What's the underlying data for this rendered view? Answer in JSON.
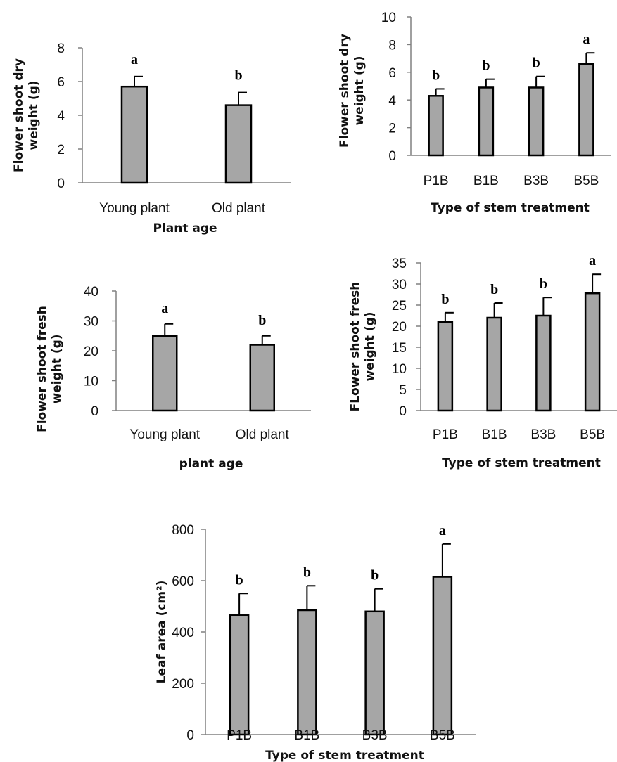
{
  "chart_data": [
    {
      "type": "bar",
      "categories": [
        "Young plant",
        "Old plant"
      ],
      "values": [
        5.7,
        4.6
      ],
      "errors": [
        0.6,
        0.75
      ],
      "letters": [
        "a",
        "b"
      ],
      "ylim": [
        0,
        8
      ],
      "yticks": [
        0,
        2,
        4,
        6,
        8
      ],
      "ylabel_lines": [
        "Flower shoot dry",
        "weight (g)"
      ],
      "xlabel": "Plant age",
      "bar_color": "#a6a6a6"
    },
    {
      "type": "bar",
      "categories": [
        "P1B",
        "B1B",
        "B3B",
        "B5B"
      ],
      "values": [
        4.3,
        4.9,
        4.9,
        6.6
      ],
      "errors": [
        0.5,
        0.6,
        0.8,
        0.8
      ],
      "letters": [
        "b",
        "b",
        "b",
        "a"
      ],
      "ylim": [
        0,
        10
      ],
      "yticks": [
        0,
        2,
        4,
        6,
        8,
        10
      ],
      "ylabel_lines": [
        "Flower shoot dry",
        "weight (g)"
      ],
      "xlabel": "Type of stem treatment",
      "bar_color": "#a6a6a6"
    },
    {
      "type": "bar",
      "categories": [
        "Young plant",
        "Old plant"
      ],
      "values": [
        25,
        22
      ],
      "errors": [
        4,
        3
      ],
      "letters": [
        "a",
        "b"
      ],
      "ylim": [
        0,
        40
      ],
      "yticks": [
        0,
        10,
        20,
        30,
        40
      ],
      "ylabel_lines": [
        "Flower shoot fresh",
        "weight (g)"
      ],
      "xlabel": "plant age",
      "bar_color": "#a6a6a6"
    },
    {
      "type": "bar",
      "categories": [
        "P1B",
        "B1B",
        "B3B",
        "B5B"
      ],
      "values": [
        21,
        22,
        22.5,
        27.8
      ],
      "errors": [
        2.2,
        3.5,
        4.3,
        4.5
      ],
      "letters": [
        "b",
        "b",
        "b",
        "a"
      ],
      "ylim": [
        0,
        35
      ],
      "yticks": [
        0,
        5,
        10,
        15,
        20,
        25,
        30,
        35
      ],
      "ylabel_lines": [
        "FLower shoot fresh",
        "weight (g)"
      ],
      "xlabel": "Type of stem treatment",
      "bar_color": "#a6a6a6"
    },
    {
      "type": "bar",
      "categories": [
        "P1B",
        "B1B",
        "B3B",
        "B5B"
      ],
      "values": [
        465,
        485,
        480,
        615
      ],
      "errors": [
        85,
        95,
        88,
        128
      ],
      "letters": [
        "b",
        "b",
        "b",
        "a"
      ],
      "ylim": [
        0,
        800
      ],
      "yticks": [
        0,
        200,
        400,
        600,
        800
      ],
      "ylabel_lines": [
        "Leaf area (cm²)"
      ],
      "xlabel": "Type of stem treatment",
      "bar_color": "#a6a6a6"
    }
  ]
}
